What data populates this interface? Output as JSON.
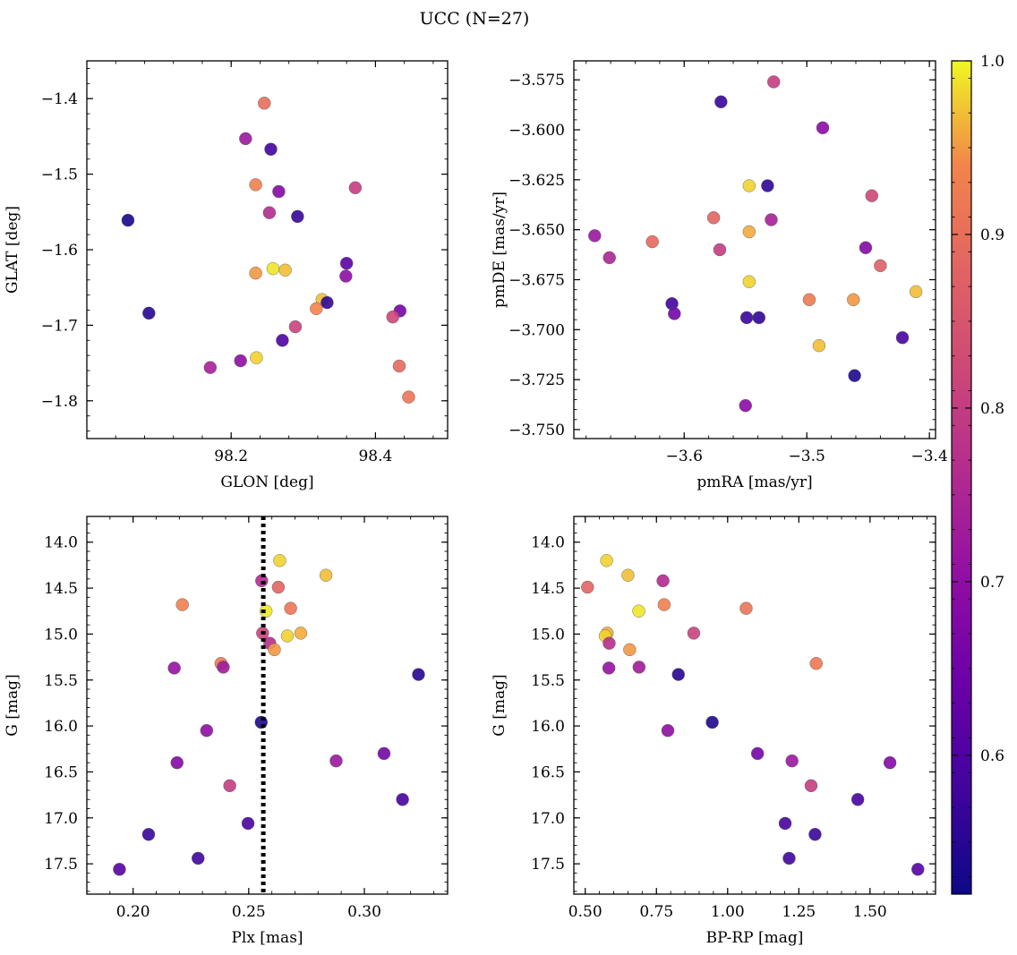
{
  "figure": {
    "title": "UCC (N=27)"
  },
  "colorbar": {
    "cmap": "plasma",
    "range": [
      0.52,
      1.0
    ],
    "ticks": [
      0.6,
      0.7,
      0.8,
      0.9,
      1.0
    ],
    "tick_labels": [
      "0.6",
      "0.7",
      "0.8",
      "0.9",
      "1.0"
    ]
  },
  "chart_data": [
    {
      "type": "scatter",
      "xlabel": "GLON [deg]",
      "ylabel": "GLAT [deg]",
      "xlim": [
        98.0,
        98.5
      ],
      "ylim": [
        -1.85,
        -1.35
      ],
      "xticks": [
        98.2,
        98.4
      ],
      "xtick_labels": [
        "98.2",
        "98.4"
      ],
      "yticks": [
        -1.8,
        -1.7,
        -1.6,
        -1.5,
        -1.4
      ],
      "ytick_labels": [
        "−1.8",
        "−1.7",
        "−1.6",
        "−1.5",
        "−1.4"
      ],
      "points": [
        {
          "x": 98.246,
          "y": -1.406,
          "c": 0.9
        },
        {
          "x": 98.22,
          "y": -1.453,
          "c": 0.72
        },
        {
          "x": 98.255,
          "y": -1.467,
          "c": 0.58
        },
        {
          "x": 98.234,
          "y": -1.514,
          "c": 0.93
        },
        {
          "x": 98.266,
          "y": -1.523,
          "c": 0.68
        },
        {
          "x": 98.372,
          "y": -1.518,
          "c": 0.8
        },
        {
          "x": 98.253,
          "y": -1.551,
          "c": 0.76
        },
        {
          "x": 98.292,
          "y": -1.556,
          "c": 0.57
        },
        {
          "x": 98.057,
          "y": -1.561,
          "c": 0.53
        },
        {
          "x": 98.36,
          "y": -1.618,
          "c": 0.62
        },
        {
          "x": 98.258,
          "y": -1.625,
          "c": 0.99
        },
        {
          "x": 98.275,
          "y": -1.627,
          "c": 0.97
        },
        {
          "x": 98.234,
          "y": -1.631,
          "c": 0.95
        },
        {
          "x": 98.359,
          "y": -1.635,
          "c": 0.7
        },
        {
          "x": 98.326,
          "y": -1.666,
          "c": 0.97
        },
        {
          "x": 98.333,
          "y": -1.67,
          "c": 0.56
        },
        {
          "x": 98.318,
          "y": -1.678,
          "c": 0.94
        },
        {
          "x": 98.434,
          "y": -1.681,
          "c": 0.66
        },
        {
          "x": 98.086,
          "y": -1.684,
          "c": 0.55
        },
        {
          "x": 98.424,
          "y": -1.689,
          "c": 0.82
        },
        {
          "x": 98.289,
          "y": -1.702,
          "c": 0.81
        },
        {
          "x": 98.271,
          "y": -1.72,
          "c": 0.6
        },
        {
          "x": 98.235,
          "y": -1.743,
          "c": 0.98
        },
        {
          "x": 98.213,
          "y": -1.747,
          "c": 0.7
        },
        {
          "x": 98.171,
          "y": -1.756,
          "c": 0.74
        },
        {
          "x": 98.433,
          "y": -1.754,
          "c": 0.89
        },
        {
          "x": 98.446,
          "y": -1.795,
          "c": 0.91
        }
      ]
    },
    {
      "type": "scatter",
      "xlabel": "pmRA [mas/yr]",
      "ylabel": "pmDE [mas/yr]",
      "xlim": [
        -3.69,
        -3.395
      ],
      "ylim": [
        -3.7545,
        -3.5655
      ],
      "xticks": [
        -3.6,
        -3.5,
        -3.4
      ],
      "xtick_labels": [
        "−3.6",
        "−3.5",
        "−3.4"
      ],
      "yticks": [
        -3.75,
        -3.725,
        -3.7,
        -3.675,
        -3.65,
        -3.625,
        -3.6,
        -3.575
      ],
      "ytick_labels": [
        "−3.750",
        "−3.725",
        "−3.700",
        "−3.675",
        "−3.650",
        "−3.625",
        "−3.600",
        "−3.575"
      ],
      "points": [
        {
          "x": -3.527,
          "y": -3.576,
          "c": 0.8
        },
        {
          "x": -3.57,
          "y": -3.586,
          "c": 0.57
        },
        {
          "x": -3.487,
          "y": -3.599,
          "c": 0.69
        },
        {
          "x": -3.547,
          "y": -3.628,
          "c": 0.98
        },
        {
          "x": -3.532,
          "y": -3.628,
          "c": 0.56
        },
        {
          "x": -3.447,
          "y": -3.633,
          "c": 0.82
        },
        {
          "x": -3.576,
          "y": -3.644,
          "c": 0.88
        },
        {
          "x": -3.529,
          "y": -3.645,
          "c": 0.74
        },
        {
          "x": -3.547,
          "y": -3.651,
          "c": 0.96
        },
        {
          "x": -3.673,
          "y": -3.653,
          "c": 0.72
        },
        {
          "x": -3.626,
          "y": -3.656,
          "c": 0.89
        },
        {
          "x": -3.452,
          "y": -3.659,
          "c": 0.68
        },
        {
          "x": -3.571,
          "y": -3.66,
          "c": 0.8
        },
        {
          "x": -3.661,
          "y": -3.664,
          "c": 0.75
        },
        {
          "x": -3.44,
          "y": -3.668,
          "c": 0.87
        },
        {
          "x": -3.547,
          "y": -3.676,
          "c": 0.98
        },
        {
          "x": -3.411,
          "y": -3.681,
          "c": 0.97
        },
        {
          "x": -3.498,
          "y": -3.685,
          "c": 0.92
        },
        {
          "x": -3.462,
          "y": -3.685,
          "c": 0.95
        },
        {
          "x": -3.61,
          "y": -3.687,
          "c": 0.58
        },
        {
          "x": -3.608,
          "y": -3.692,
          "c": 0.66
        },
        {
          "x": -3.549,
          "y": -3.694,
          "c": 0.57
        },
        {
          "x": -3.539,
          "y": -3.694,
          "c": 0.56
        },
        {
          "x": -3.422,
          "y": -3.704,
          "c": 0.59
        },
        {
          "x": -3.49,
          "y": -3.708,
          "c": 0.97
        },
        {
          "x": -3.461,
          "y": -3.723,
          "c": 0.54
        },
        {
          "x": -3.55,
          "y": -3.738,
          "c": 0.69
        }
      ]
    },
    {
      "type": "scatter",
      "xlabel": "Plx [mas]",
      "ylabel": "G [mag]",
      "xlim": [
        0.18,
        0.336
      ],
      "ylim": [
        17.83,
        13.72
      ],
      "xticks": [
        0.2,
        0.25,
        0.3
      ],
      "xtick_labels": [
        "0.20",
        "0.25",
        "0.30"
      ],
      "yticks": [
        14.0,
        14.5,
        15.0,
        15.5,
        16.0,
        16.5,
        17.0,
        17.5
      ],
      "ytick_labels": [
        "14.0",
        "14.5",
        "15.0",
        "15.5",
        "16.0",
        "16.5",
        "17.0",
        "17.5"
      ],
      "vline": {
        "x": 0.2563,
        "style": "dotted",
        "color": "#000000"
      },
      "points": [
        {
          "x": 0.2634,
          "y": 14.2,
          "c": 0.98
        },
        {
          "x": 0.2834,
          "y": 14.36,
          "c": 0.97
        },
        {
          "x": 0.2556,
          "y": 14.42,
          "c": 0.76
        },
        {
          "x": 0.2628,
          "y": 14.49,
          "c": 0.88
        },
        {
          "x": 0.2213,
          "y": 14.68,
          "c": 0.93
        },
        {
          "x": 0.2681,
          "y": 14.72,
          "c": 0.91
        },
        {
          "x": 0.2575,
          "y": 14.75,
          "c": 0.99
        },
        {
          "x": 0.256,
          "y": 14.99,
          "c": 0.81
        },
        {
          "x": 0.2725,
          "y": 14.99,
          "c": 0.96
        },
        {
          "x": 0.2667,
          "y": 15.02,
          "c": 0.98
        },
        {
          "x": 0.2591,
          "y": 15.1,
          "c": 0.77
        },
        {
          "x": 0.2611,
          "y": 15.17,
          "c": 0.95
        },
        {
          "x": 0.238,
          "y": 15.32,
          "c": 0.92
        },
        {
          "x": 0.2178,
          "y": 15.37,
          "c": 0.71
        },
        {
          "x": 0.239,
          "y": 15.36,
          "c": 0.73
        },
        {
          "x": 0.3234,
          "y": 15.44,
          "c": 0.55
        },
        {
          "x": 0.2554,
          "y": 15.96,
          "c": 0.54
        },
        {
          "x": 0.2318,
          "y": 16.05,
          "c": 0.7
        },
        {
          "x": 0.3085,
          "y": 16.3,
          "c": 0.66
        },
        {
          "x": 0.2878,
          "y": 16.38,
          "c": 0.72
        },
        {
          "x": 0.219,
          "y": 16.4,
          "c": 0.68
        },
        {
          "x": 0.2418,
          "y": 16.65,
          "c": 0.8
        },
        {
          "x": 0.3165,
          "y": 16.8,
          "c": 0.59
        },
        {
          "x": 0.2497,
          "y": 17.06,
          "c": 0.59
        },
        {
          "x": 0.2067,
          "y": 17.18,
          "c": 0.57
        },
        {
          "x": 0.2281,
          "y": 17.44,
          "c": 0.58
        },
        {
          "x": 0.1941,
          "y": 17.56,
          "c": 0.61
        }
      ]
    },
    {
      "type": "scatter",
      "xlabel": "BP-RP [mag]",
      "ylabel": "G [mag]",
      "xlim": [
        0.46,
        1.73
      ],
      "ylim": [
        17.83,
        13.72
      ],
      "xticks": [
        0.5,
        0.75,
        1.0,
        1.25,
        1.5
      ],
      "xtick_labels": [
        "0.50",
        "0.75",
        "1.00",
        "1.25",
        "1.50"
      ],
      "yticks": [
        14.0,
        14.5,
        15.0,
        15.5,
        16.0,
        16.5,
        17.0,
        17.5
      ],
      "ytick_labels": [
        "14.0",
        "14.5",
        "15.0",
        "15.5",
        "16.0",
        "16.5",
        "17.0",
        "17.5"
      ],
      "points": [
        {
          "x": 0.575,
          "y": 14.2,
          "c": 0.98
        },
        {
          "x": 0.65,
          "y": 14.36,
          "c": 0.97
        },
        {
          "x": 0.773,
          "y": 14.42,
          "c": 0.76
        },
        {
          "x": 0.508,
          "y": 14.49,
          "c": 0.88
        },
        {
          "x": 0.777,
          "y": 14.68,
          "c": 0.93
        },
        {
          "x": 1.065,
          "y": 14.72,
          "c": 0.91
        },
        {
          "x": 0.688,
          "y": 14.75,
          "c": 0.99
        },
        {
          "x": 0.881,
          "y": 14.99,
          "c": 0.81
        },
        {
          "x": 0.577,
          "y": 14.99,
          "c": 0.96
        },
        {
          "x": 0.57,
          "y": 15.02,
          "c": 0.98
        },
        {
          "x": 0.584,
          "y": 15.1,
          "c": 0.77
        },
        {
          "x": 0.656,
          "y": 15.17,
          "c": 0.95
        },
        {
          "x": 1.311,
          "y": 15.32,
          "c": 0.92
        },
        {
          "x": 0.583,
          "y": 15.37,
          "c": 0.71
        },
        {
          "x": 0.689,
          "y": 15.36,
          "c": 0.73
        },
        {
          "x": 0.827,
          "y": 15.44,
          "c": 0.55
        },
        {
          "x": 0.946,
          "y": 15.96,
          "c": 0.54
        },
        {
          "x": 0.79,
          "y": 16.05,
          "c": 0.7
        },
        {
          "x": 1.105,
          "y": 16.3,
          "c": 0.66
        },
        {
          "x": 1.226,
          "y": 16.38,
          "c": 0.72
        },
        {
          "x": 1.57,
          "y": 16.4,
          "c": 0.68
        },
        {
          "x": 1.293,
          "y": 16.65,
          "c": 0.8
        },
        {
          "x": 1.457,
          "y": 16.8,
          "c": 0.59
        },
        {
          "x": 1.202,
          "y": 17.06,
          "c": 0.59
        },
        {
          "x": 1.307,
          "y": 17.18,
          "c": 0.57
        },
        {
          "x": 1.216,
          "y": 17.44,
          "c": 0.58
        },
        {
          "x": 1.668,
          "y": 17.56,
          "c": 0.61
        }
      ]
    }
  ]
}
